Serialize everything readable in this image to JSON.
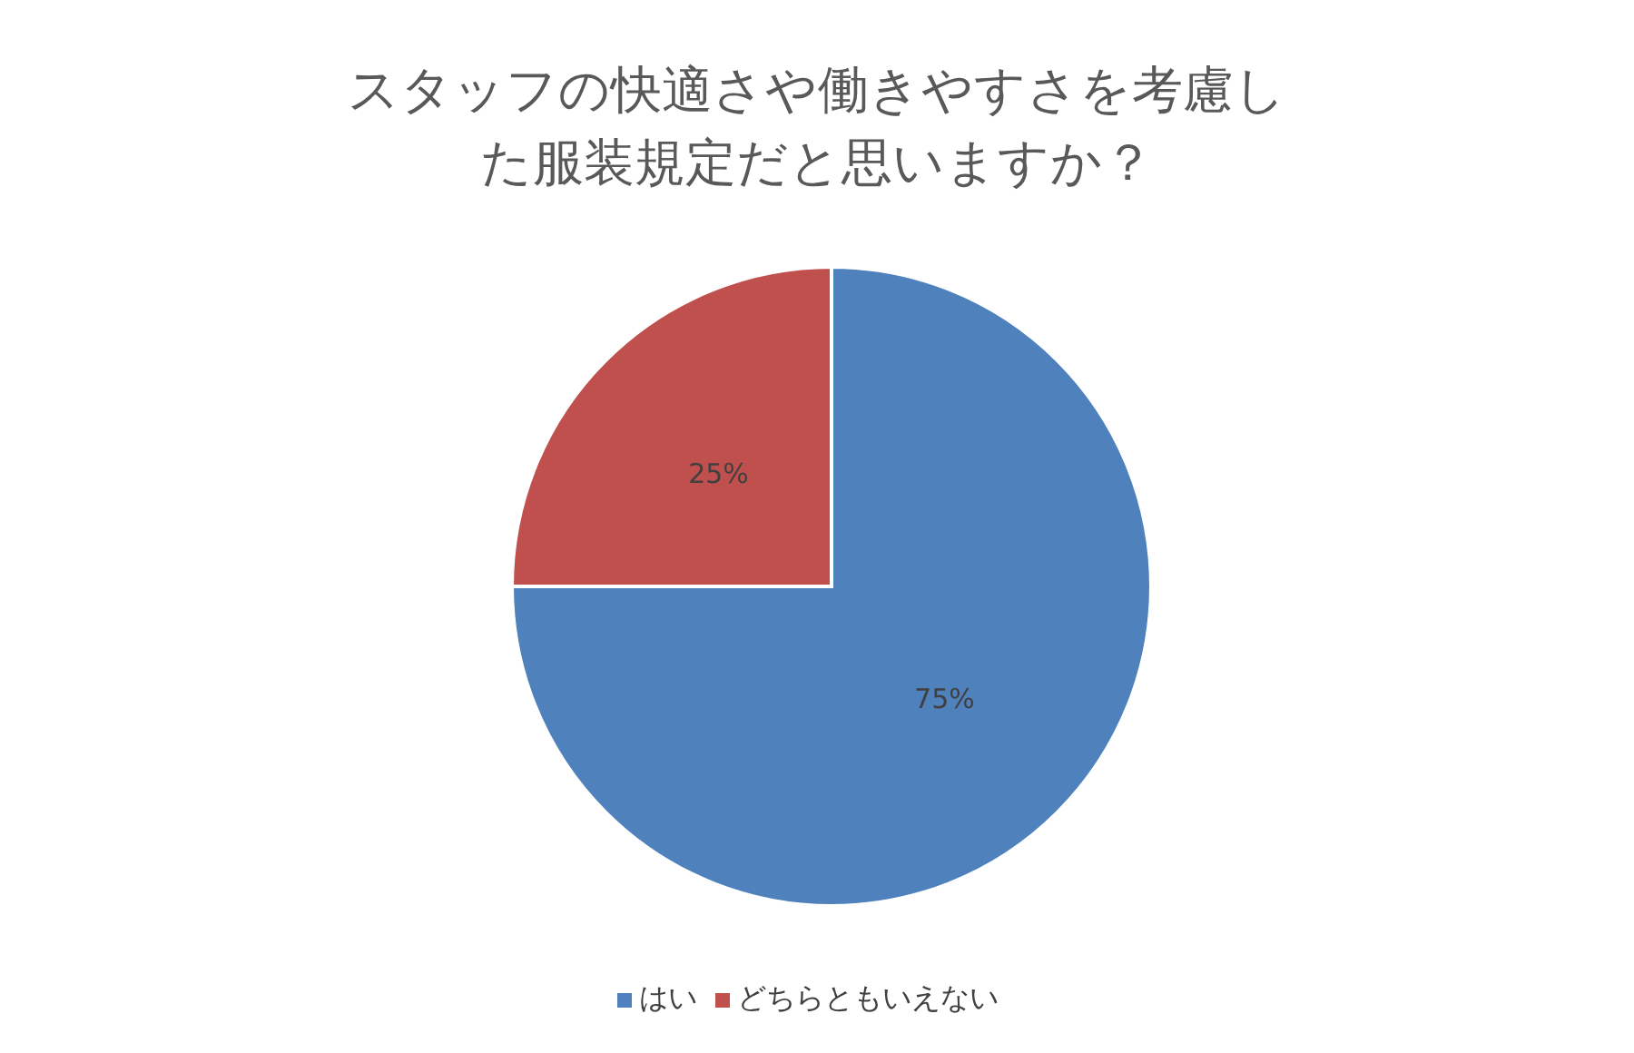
{
  "chart_data": {
    "type": "pie",
    "title": "スタッフの快適さや働きやすさを考慮した服装規定だと思いますか？",
    "categories": [
      "はい",
      "どちらともいえない"
    ],
    "values": [
      75,
      25
    ],
    "colors": [
      "#4f81bd",
      "#c0504d"
    ],
    "value_labels": [
      "75%",
      "25%"
    ],
    "legend": "bottom"
  }
}
